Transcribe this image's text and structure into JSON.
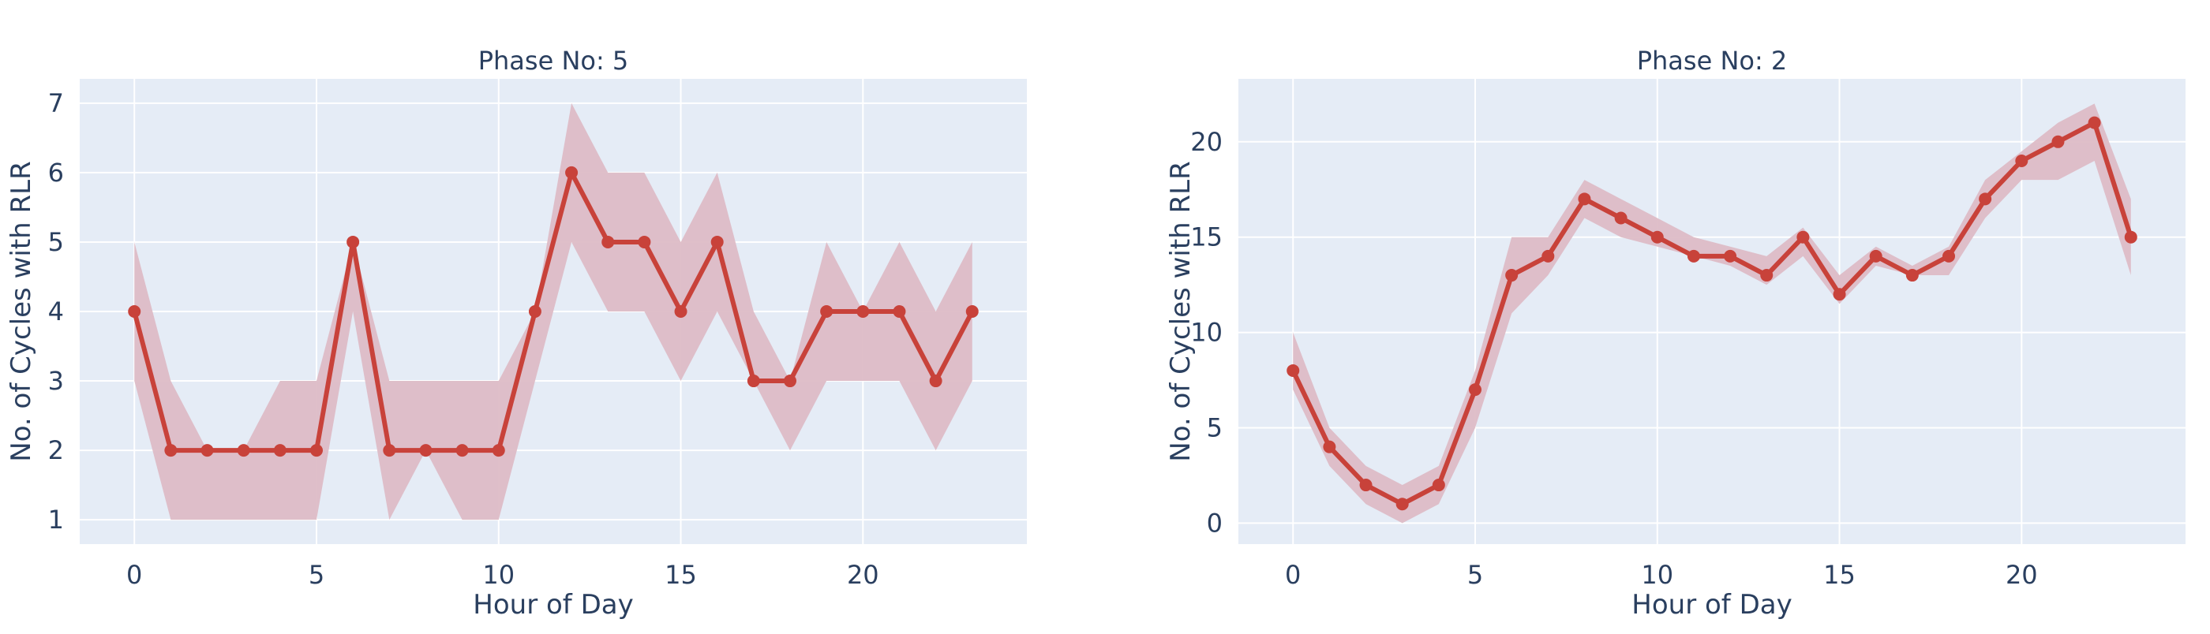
{
  "chart_data": [
    {
      "type": "line",
      "title": "Phase No: 5",
      "xlabel": "Hour of Day",
      "ylabel": "No. of Cycles with RLR",
      "xlim": [
        -1.5,
        24.5
      ],
      "ylim": [
        0.65,
        7.35
      ],
      "xticks": [
        0,
        5,
        10,
        15,
        20
      ],
      "yticks": [
        1,
        2,
        3,
        4,
        5,
        6,
        7
      ],
      "grid": true,
      "x": [
        0,
        1,
        2,
        3,
        4,
        5,
        6,
        7,
        8,
        9,
        10,
        11,
        12,
        13,
        14,
        15,
        16,
        17,
        18,
        19,
        20,
        21,
        22,
        23
      ],
      "series": [
        {
          "values": [
            4,
            2,
            2,
            2,
            2,
            2,
            5,
            2,
            2,
            2,
            2,
            4,
            6,
            5,
            5,
            4,
            5,
            3,
            3,
            4,
            4,
            4,
            3,
            4
          ]
        }
      ],
      "band_lower": [
        3,
        1,
        1,
        1,
        1,
        1,
        4,
        1,
        2,
        1,
        1,
        3,
        5,
        4,
        4,
        3,
        4,
        3,
        2,
        3,
        3,
        3,
        2,
        3
      ],
      "band_upper": [
        5,
        3,
        2,
        2,
        3,
        3,
        5,
        3,
        3,
        3,
        3,
        4,
        7,
        6,
        6,
        5,
        6,
        4,
        3,
        5,
        4,
        5,
        4,
        5
      ],
      "line_color": "#c8423a",
      "band_color": "#ddbcc6"
    },
    {
      "type": "line",
      "title": "Phase No: 2",
      "xlabel": "Hour of Day",
      "ylabel": "No. of Cycles with RLR",
      "xlim": [
        -1.5,
        24.5
      ],
      "ylim": [
        -1.1,
        23.3
      ],
      "xticks": [
        0,
        5,
        10,
        15,
        20
      ],
      "yticks": [
        0,
        5,
        10,
        15,
        20
      ],
      "grid": true,
      "x": [
        0,
        1,
        2,
        3,
        4,
        5,
        6,
        7,
        8,
        9,
        10,
        11,
        12,
        13,
        14,
        15,
        16,
        17,
        18,
        19,
        20,
        21,
        22,
        23
      ],
      "series": [
        {
          "values": [
            8,
            4,
            2,
            1,
            2,
            7,
            13,
            14,
            17,
            16,
            15,
            14,
            14,
            13,
            15,
            12,
            14,
            13,
            14,
            17,
            19,
            20,
            21,
            15
          ]
        }
      ],
      "band_lower": [
        7,
        3,
        1,
        0,
        1,
        5,
        11,
        13,
        16,
        15,
        14.5,
        14,
        13.5,
        12.5,
        14,
        11.5,
        13.5,
        13,
        13,
        16,
        18,
        18,
        19,
        13
      ],
      "band_upper": [
        10,
        5,
        3,
        2,
        3,
        8,
        15,
        15,
        18,
        17,
        16,
        15,
        14.5,
        14,
        15.5,
        13,
        14.5,
        13.5,
        14.5,
        18,
        19.5,
        21,
        22,
        17
      ],
      "line_color": "#c8423a",
      "band_color": "#ddbcc6"
    }
  ]
}
